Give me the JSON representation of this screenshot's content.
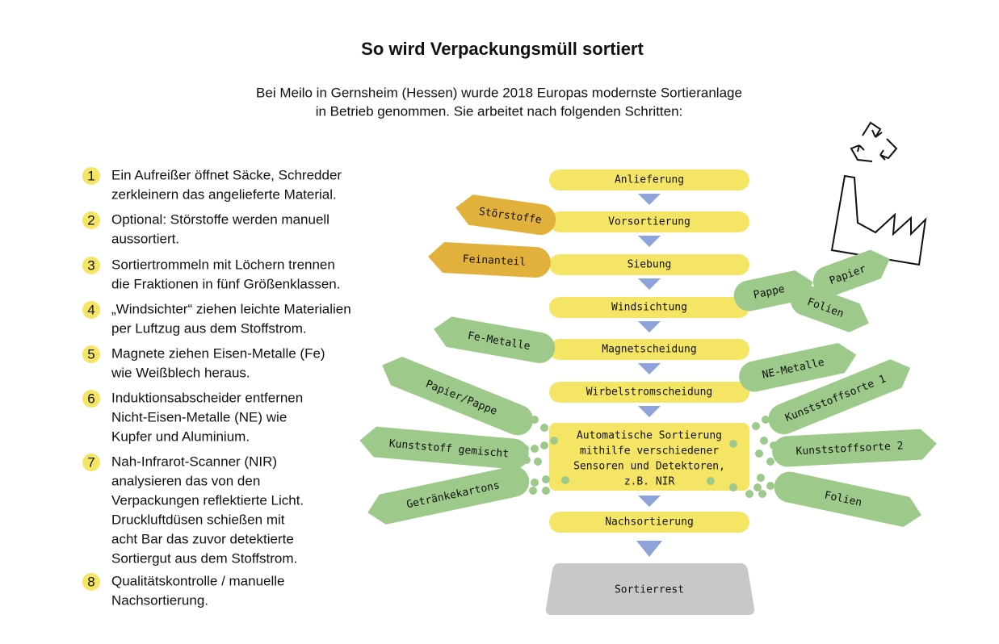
{
  "header": {
    "title": "So wird Verpackungsmüll sortiert",
    "intro": [
      "Bei Meilo in Gernsheim (Hessen) wurde 2018 Europas modernste Sortieranlage",
      "in Betrieb genommen. Sie arbeitet nach folgenden Schritten:"
    ]
  },
  "steps": [
    {
      "number": "1",
      "lines": [
        "Ein Aufreißer öffnet Säcke, Schredder",
        "zerkleinern das angelieferte Material."
      ]
    },
    {
      "number": "2",
      "lines": [
        "Optional: Störstoffe werden manuell",
        "aussortiert."
      ]
    },
    {
      "number": "3",
      "lines": [
        "Sortiertrommeln mit Löchern trennen",
        "die Fraktionen in fünf Größenklassen."
      ]
    },
    {
      "number": "4",
      "lines": [
        "„Windsichter“ ziehen leichte Materialien",
        "per Luftzug aus dem Stoffstrom."
      ]
    },
    {
      "number": "5",
      "lines": [
        "Magnete ziehen Eisen-Metalle (Fe)",
        "wie Weißblech heraus."
      ]
    },
    {
      "number": "6",
      "lines": [
        "Induktionsabscheider entfernen",
        "Nicht-Eisen-Metalle (NE) wie",
        "Kupfer und Aluminium."
      ]
    },
    {
      "number": "7",
      "lines": [
        "Nah-Infrarot-Scanner (NIR)",
        "analysieren das von den",
        "Verpackungen reflektierte Licht.",
        "Druckluftdüsen schießen mit",
        "acht Bar das zuvor detektierte",
        "Sortiergut aus dem Stoffstrom."
      ]
    },
    {
      "number": "8",
      "lines": [
        "Qualitätskontrolle / manuelle",
        "Nachsortierung."
      ]
    }
  ],
  "flow": {
    "stages": [
      "Anlieferung",
      "Vorsortierung",
      "Siebung",
      "Windsichtung",
      "Magnetscheidung",
      "Wirbelstromscheidung"
    ],
    "sorting": [
      "Automatische Sortierung",
      "mithilfe verschiedener",
      "Sensoren und Detektoren,",
      "z.B. NIR"
    ],
    "after": "Nachsortierung",
    "rest": "Sortierrest"
  },
  "outputs": [
    "Störstoffe",
    "Feinanteil",
    "Pappe",
    "Papier",
    "Folien",
    "Fe-Metalle",
    "NE-Metalle",
    "Papier/Pappe",
    "Kunststoffsorte 1",
    "Kunststoff gemischt",
    "Kunststoffsorte 2",
    "Getränkekartons",
    "Folien"
  ]
}
